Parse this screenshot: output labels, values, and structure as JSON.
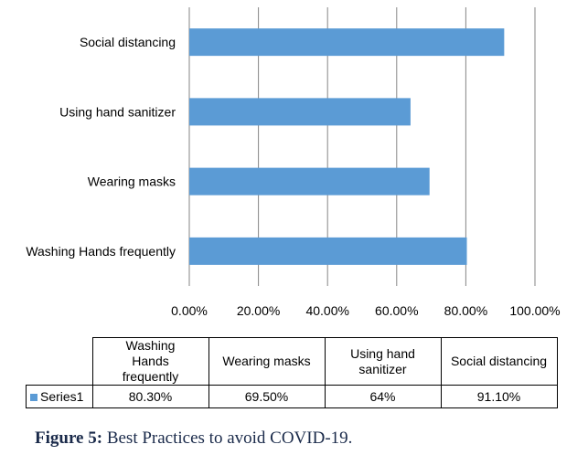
{
  "chart_data": {
    "type": "bar",
    "orientation": "horizontal",
    "categories": [
      "Washing Hands frequently",
      "Wearing masks",
      "Using hand sanitizer",
      "Social distancing"
    ],
    "table_headers": [
      "Washing Hands frequently",
      "Wearing masks",
      "Using hand sanitizer",
      "Social distancing"
    ],
    "series": [
      {
        "name": "Series1",
        "values": [
          80.3,
          69.5,
          64,
          91.1
        ],
        "value_labels": [
          "80.30%",
          "69.50%",
          "64%",
          "91.10%"
        ]
      }
    ],
    "xlim": [
      0,
      100
    ],
    "x_ticks": [
      0,
      20,
      40,
      60,
      80,
      100
    ],
    "x_tick_labels": [
      "0.00%",
      "20.00%",
      "40.00%",
      "60.00%",
      "80.00%",
      "100.00%"
    ],
    "grid": true,
    "legend": "data-table"
  },
  "caption": {
    "label": "Figure 5:",
    "text": " Best Practices to avoid COVID-19."
  },
  "colors": {
    "bar": "#5B9BD5",
    "grid": "#868686",
    "caption": "#1a2a4a"
  }
}
